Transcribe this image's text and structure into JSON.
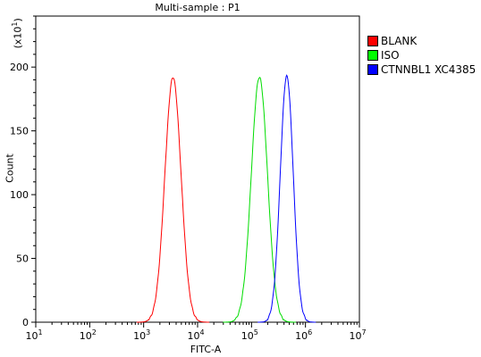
{
  "chart_data": {
    "type": "line",
    "title": "Multi-sample : P1",
    "xlabel": "FITC-A",
    "ylabel": "Count",
    "y_multiplier": "(x10",
    "y_multiplier_exp": "1",
    "x_scale": "log",
    "xlim": [
      10,
      10000000
    ],
    "ylim": [
      0,
      240
    ],
    "x_ticks": [
      {
        "base": "10",
        "exp": "1"
      },
      {
        "base": "10",
        "exp": "2"
      },
      {
        "base": "10",
        "exp": "3"
      },
      {
        "base": "10",
        "exp": "4"
      },
      {
        "base": "10",
        "exp": "5"
      },
      {
        "base": "10",
        "exp": "6"
      },
      {
        "base": "10",
        "exp": "7"
      }
    ],
    "y_ticks": [
      "0",
      "50",
      "100",
      "150",
      "200"
    ],
    "legend_position": "right",
    "series": [
      {
        "name": "BLANK",
        "color": "#ff0000",
        "peak_x": 3500,
        "peak_y": 192,
        "log_sigma": 0.15
      },
      {
        "name": "ISO",
        "color": "#00dd00",
        "peak_x": 140000,
        "peak_y": 192,
        "log_sigma": 0.15
      },
      {
        "name": "CTNNBL1 XC4385",
        "color": "#0000ff",
        "peak_x": 450000,
        "peak_y": 193,
        "log_sigma": 0.12
      }
    ]
  }
}
